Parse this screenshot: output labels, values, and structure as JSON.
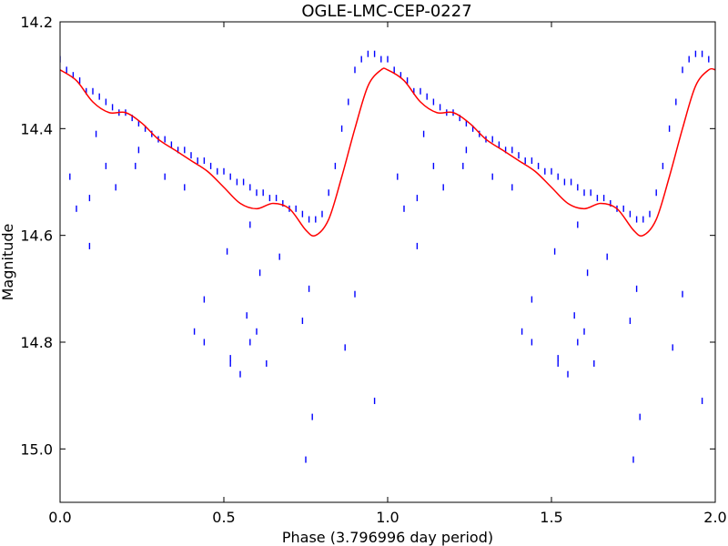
{
  "chart_data": {
    "type": "scatter",
    "title": "OGLE-LMC-CEP-0227",
    "xlabel": "Phase (3.796996 day period)",
    "ylabel": "Magnitude",
    "xlim": [
      0.0,
      2.0
    ],
    "ylim": [
      14.2,
      15.1
    ],
    "y_inverted": true,
    "x_ticks": [
      "0.0",
      "0.5",
      "1.0",
      "1.5",
      "2.0"
    ],
    "y_ticks": [
      "14.2",
      "14.4",
      "14.6",
      "14.8",
      "15.0"
    ],
    "grid": false,
    "colors": {
      "points": "#0000ff",
      "fit": "#ff0000"
    },
    "series": [
      {
        "kind": "points",
        "marker": "vertical-tick",
        "note": "main light curve (phase 0-1, repeated at phase 1-2)",
        "x": [
          0.0,
          0.02,
          0.04,
          0.06,
          0.08,
          0.1,
          0.12,
          0.14,
          0.16,
          0.18,
          0.2,
          0.22,
          0.24,
          0.26,
          0.28,
          0.3,
          0.32,
          0.34,
          0.36,
          0.38,
          0.4,
          0.42,
          0.44,
          0.46,
          0.48,
          0.5,
          0.52,
          0.54,
          0.56,
          0.58,
          0.6,
          0.62,
          0.64,
          0.66,
          0.68,
          0.7,
          0.72,
          0.74,
          0.76,
          0.78,
          0.8,
          0.82,
          0.84,
          0.86,
          0.88,
          0.9,
          0.92,
          0.94,
          0.96,
          0.98
        ],
        "y": [
          14.27,
          14.29,
          14.3,
          14.31,
          14.33,
          14.33,
          14.34,
          14.35,
          14.36,
          14.37,
          14.37,
          14.38,
          14.39,
          14.4,
          14.41,
          14.42,
          14.42,
          14.43,
          14.44,
          14.44,
          14.45,
          14.46,
          14.46,
          14.47,
          14.48,
          14.48,
          14.49,
          14.5,
          14.5,
          14.51,
          14.52,
          14.52,
          14.53,
          14.53,
          14.54,
          14.55,
          14.55,
          14.56,
          14.57,
          14.57,
          14.56,
          14.52,
          14.47,
          14.4,
          14.35,
          14.29,
          14.27,
          14.26,
          14.26,
          14.27
        ]
      },
      {
        "kind": "points",
        "marker": "vertical-tick",
        "note": "scattered outliers (phase 0-1)",
        "x": [
          0.03,
          0.05,
          0.09,
          0.09,
          0.11,
          0.14,
          0.17,
          0.23,
          0.24,
          0.32,
          0.38,
          0.41,
          0.44,
          0.44,
          0.51,
          0.52,
          0.52,
          0.55,
          0.57,
          0.58,
          0.58,
          0.6,
          0.61,
          0.63,
          0.67,
          0.74,
          0.75,
          0.76,
          0.77,
          0.87,
          0.9,
          0.96
        ],
        "y": [
          14.49,
          14.55,
          14.53,
          14.62,
          14.41,
          14.47,
          14.51,
          14.47,
          14.44,
          14.49,
          14.51,
          14.78,
          14.8,
          14.72,
          14.63,
          14.83,
          14.84,
          14.86,
          14.75,
          14.8,
          14.58,
          14.78,
          14.67,
          14.84,
          14.64,
          14.76,
          15.02,
          14.7,
          14.94,
          14.81,
          14.71,
          14.91
        ]
      },
      {
        "kind": "line",
        "note": "Fourier fit",
        "x": [
          0.0,
          0.05,
          0.1,
          0.15,
          0.2,
          0.25,
          0.3,
          0.35,
          0.4,
          0.45,
          0.5,
          0.55,
          0.6,
          0.65,
          0.7,
          0.75,
          0.78,
          0.82,
          0.86,
          0.9,
          0.94,
          0.98,
          1.0,
          1.05,
          1.1,
          1.15,
          1.2,
          1.25,
          1.3,
          1.35,
          1.4,
          1.45,
          1.5,
          1.55,
          1.6,
          1.65,
          1.7,
          1.75,
          1.78,
          1.82,
          1.86,
          1.9,
          1.94,
          1.98,
          2.0
        ],
        "y": [
          14.29,
          14.31,
          14.35,
          14.37,
          14.37,
          14.39,
          14.42,
          14.44,
          14.46,
          14.48,
          14.51,
          14.54,
          14.55,
          14.54,
          14.55,
          14.59,
          14.6,
          14.57,
          14.49,
          14.4,
          14.32,
          14.29,
          14.29,
          14.31,
          14.35,
          14.37,
          14.37,
          14.39,
          14.42,
          14.44,
          14.46,
          14.48,
          14.51,
          14.54,
          14.55,
          14.54,
          14.55,
          14.59,
          14.6,
          14.57,
          14.49,
          14.4,
          14.32,
          14.29,
          14.29
        ]
      }
    ]
  }
}
